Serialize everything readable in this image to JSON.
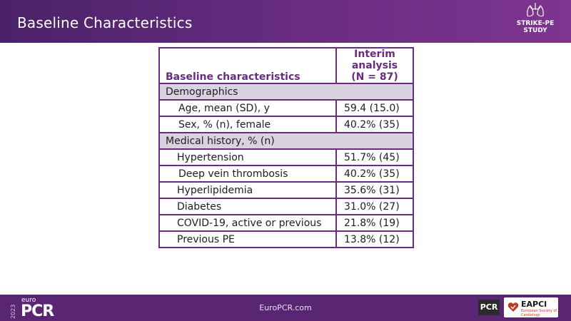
{
  "slide": {
    "title": "Baseline Characteristics",
    "logo_line1": "STRIKE-PE",
    "logo_line2": "STUDY"
  },
  "table": {
    "header_label": "Baseline characteristics",
    "header_value_line1": "Interim",
    "header_value_line2": "analysis",
    "header_value_line3": "(N = 87)",
    "rows": [
      {
        "type": "section",
        "label": "Demographics",
        "value": ""
      },
      {
        "type": "item",
        "label": "Age, mean (SD), y",
        "value": "59.4 (15.0)"
      },
      {
        "type": "item",
        "label": "Sex, % (n), female",
        "value": "40.2% (35)"
      },
      {
        "type": "section",
        "label": "Medical history, % (n)",
        "value": ""
      },
      {
        "type": "item",
        "label": "Hypertension",
        "value": "51.7% (45)"
      },
      {
        "type": "item",
        "label": "Deep vein thrombosis",
        "value": "40.2% (35)"
      },
      {
        "type": "item",
        "label": "Hyperlipidemia",
        "value": "35.6% (31)"
      },
      {
        "type": "item",
        "label": "Diabetes",
        "value": "31.0% (27)"
      },
      {
        "type": "item",
        "label": "COVID-19, active or previous",
        "value": "21.8% (19)"
      },
      {
        "type": "item",
        "label": "Previous PE",
        "value": "13.8% (12)"
      }
    ]
  },
  "footer": {
    "year": "2023",
    "brand_small": "euro",
    "brand_big": "PCR",
    "url": "EuroPCR.com",
    "badge_pcr": "PCR",
    "badge_eapci": "EAPCI",
    "badge_eapci_sub": "European Society of Cardiology"
  },
  "colors": {
    "header_purple": "#5b2677",
    "table_border": "#6a2c80",
    "section_fill": "#d9d3df",
    "footer_purple": "#5a2673"
  }
}
